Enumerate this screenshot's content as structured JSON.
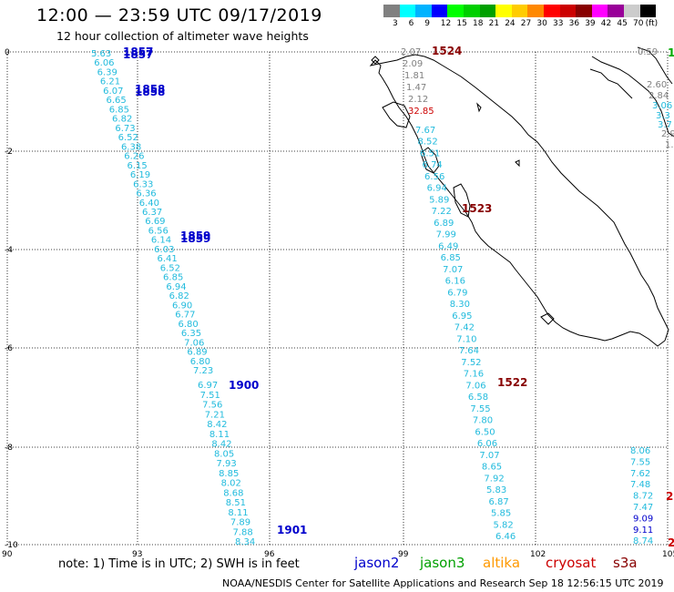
{
  "header": {
    "title": "12:00 — 23:59 UTC 09/17/2019",
    "subtitle": "12 hour collection of altimeter wave heights"
  },
  "legend": {
    "colors": [
      "#808080",
      "#00ffff",
      "#00b3ff",
      "#0000ff",
      "#00ff00",
      "#00d000",
      "#00a000",
      "#ffff00",
      "#ffcc00",
      "#ff8800",
      "#ff0000",
      "#cc0000",
      "#880000",
      "#ff00ff",
      "#990099",
      "#cccccc",
      "#000000"
    ],
    "labels": [
      "3",
      "6",
      "9",
      "12",
      "15",
      "18",
      "21",
      "24",
      "27",
      "30",
      "33",
      "36",
      "39",
      "42",
      "45",
      "70",
      "(ft)"
    ]
  },
  "axes": {
    "x_ticks": [
      "90",
      "93",
      "96",
      "99",
      "102",
      "105"
    ],
    "y_ticks": [
      "0",
      "-2",
      "-4",
      "-6",
      "-8",
      "-10"
    ]
  },
  "time_labels": [
    {
      "text": "1857",
      "color": "#0000cc"
    },
    {
      "text": "1857",
      "color": "#0000cc"
    },
    {
      "text": "1858",
      "color": "#0000cc"
    },
    {
      "text": "1858",
      "color": "#0000cc"
    },
    {
      "text": "1859",
      "color": "#0000cc"
    },
    {
      "text": "1859",
      "color": "#0000cc"
    },
    {
      "text": "1900",
      "color": "#0000cc"
    },
    {
      "text": "1901",
      "color": "#0000cc"
    },
    {
      "text": "1524",
      "color": "#880000"
    },
    {
      "text": "1523",
      "color": "#880000"
    },
    {
      "text": "1522",
      "color": "#880000"
    },
    {
      "text": "1",
      "color": "#00aa00"
    },
    {
      "text": "2",
      "color": "#cc0000"
    },
    {
      "text": "2",
      "color": "#cc0000"
    }
  ],
  "track_west_upper": [
    "5.63",
    "6.06",
    "6.39",
    "6.21",
    "6.07",
    "6.65",
    "6.85",
    "6.82",
    "6.73",
    "6.52",
    "6.38",
    "6.26",
    "6.15",
    "6.19",
    "6.33",
    "6.36",
    "6.40",
    "6.37",
    "6.69",
    "6.56",
    "6.14",
    "6.03",
    "6.41",
    "6.52",
    "6.85",
    "6.94",
    "6.82",
    "6.90",
    "6.77",
    "6.80",
    "6.35",
    "7.06",
    "6.89",
    "6.80",
    "7.23"
  ],
  "track_west_lower": [
    "6.97",
    "7.51",
    "7.56",
    "7.21",
    "8.42",
    "8.11",
    "8.42",
    "8.05",
    "7.93",
    "8.85",
    "8.02",
    "8.68",
    "8.51",
    "8.11",
    "7.89",
    "7.88",
    "8.34"
  ],
  "track_mid_gray": [
    "2.07",
    "2.09",
    "1.81",
    "1.47",
    "2.12"
  ],
  "track_mid_red": [
    "32.85"
  ],
  "track_mid": [
    "7.67",
    "8.52",
    "6.51",
    "6.74",
    "6.56",
    "6.94",
    "5.89",
    "7.22",
    "6.89",
    "7.99",
    "6.49",
    "6.85",
    "7.07",
    "6.16",
    "6.79",
    "8.30",
    "6.95",
    "7.42",
    "7.10",
    "7.64",
    "7.52",
    "7.16",
    "7.06",
    "6.58",
    "7.55",
    "7.80",
    "6.50",
    "6.06",
    "7.07",
    "8.65",
    "7.92",
    "5.83",
    "6.87",
    "5.85",
    "5.82",
    "6.46"
  ],
  "track_east_gray": [
    "0.59",
    "2.60",
    "2.84",
    "2.9",
    "1."
  ],
  "track_east_cyan": [
    "3.06",
    "3.3",
    "3.7"
  ],
  "track_east_lower": [
    "8.06",
    "7.55",
    "7.62",
    "7.48",
    "8.72",
    "7.47",
    "9.09",
    "9.11",
    "8.74"
  ],
  "notes": {
    "text": "note:  1) Time is in UTC;  2) SWH is in feet",
    "satellites": [
      {
        "name": "jason2",
        "color": "#0000cc"
      },
      {
        "name": "jason3",
        "color": "#00a000"
      },
      {
        "name": "altika",
        "color": "#ff9900"
      },
      {
        "name": "cryosat",
        "color": "#cc0000"
      },
      {
        "name": "s3a",
        "color": "#880000"
      }
    ]
  },
  "footer": "NOAA/NESDIS Center for Satellite Applications and Research    Sep 18 12:56:15 UTC 2019"
}
